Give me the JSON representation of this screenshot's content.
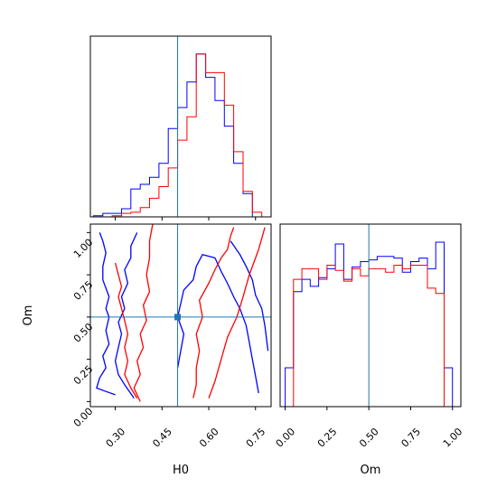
{
  "colors": {
    "blue": "#0000ff",
    "red": "#ff0000",
    "truth": "#1f77b4",
    "frame": "#000000"
  },
  "chart_data": [
    {
      "type": "histogram",
      "panel": "H0 marginal (top-left)",
      "xlim": [
        0.22,
        0.8
      ],
      "bin_edges": [
        0.23,
        0.26,
        0.29,
        0.32,
        0.35,
        0.38,
        0.41,
        0.44,
        0.47,
        0.5,
        0.53,
        0.56,
        0.59,
        0.62,
        0.65,
        0.68,
        0.71,
        0.74,
        0.77
      ],
      "yaxis_visible": false,
      "series": [
        {
          "color": "blue",
          "counts": [
            0.5,
            1.5,
            1.5,
            3.5,
            12,
            14,
            17,
            23,
            38,
            47,
            58,
            70,
            60,
            50,
            39,
            23,
            10,
            0
          ]
        },
        {
          "color": "red",
          "counts": [
            0,
            0,
            0.5,
            1.5,
            2,
            4,
            8,
            13,
            21,
            33,
            43,
            70,
            62,
            62,
            48,
            28,
            11,
            2
          ]
        }
      ],
      "truth_x": 0.5,
      "x_ticks": [
        0.3,
        0.45,
        0.6,
        0.75
      ],
      "x_tick_labels_shown": false
    },
    {
      "type": "contour",
      "panel": "H0 vs Om (bottom-left)",
      "xlabel": "H0",
      "ylabel": "Om",
      "xlim": [
        0.22,
        0.8
      ],
      "ylim": [
        -0.03,
        1.05
      ],
      "x_ticks": [
        0.3,
        0.45,
        0.6,
        0.75
      ],
      "x_tick_labels": [
        "0.30",
        "0.45",
        "0.60",
        "0.75"
      ],
      "y_ticks": [
        0,
        0.25,
        0.5,
        0.75,
        1.0
      ],
      "y_tick_labels": [
        "0.00",
        "0.25",
        "0.50",
        "0.75",
        "1.00"
      ],
      "truth": {
        "x": 0.5,
        "y": 0.5
      },
      "contours": [
        {
          "color": "blue",
          "points": [
            [
              0.25,
              1.0
            ],
            [
              0.26,
              0.95
            ],
            [
              0.27,
              0.88
            ],
            [
              0.26,
              0.8
            ],
            [
              0.26,
              0.72
            ],
            [
              0.28,
              0.62
            ],
            [
              0.27,
              0.55
            ],
            [
              0.28,
              0.5
            ],
            [
              0.27,
              0.42
            ],
            [
              0.28,
              0.34
            ],
            [
              0.26,
              0.27
            ],
            [
              0.27,
              0.2
            ],
            [
              0.25,
              0.14
            ],
            [
              0.24,
              0.08
            ],
            [
              0.27,
              0.06
            ],
            [
              0.3,
              0.04
            ]
          ]
        },
        {
          "color": "blue",
          "points": [
            [
              0.37,
              1.0
            ],
            [
              0.35,
              0.92
            ],
            [
              0.35,
              0.85
            ],
            [
              0.33,
              0.78
            ],
            [
              0.34,
              0.7
            ],
            [
              0.32,
              0.62
            ],
            [
              0.33,
              0.55
            ],
            [
              0.31,
              0.47
            ],
            [
              0.32,
              0.4
            ],
            [
              0.31,
              0.32
            ],
            [
              0.3,
              0.24
            ],
            [
              0.31,
              0.16
            ],
            [
              0.33,
              0.1
            ],
            [
              0.36,
              0.02
            ]
          ]
        },
        {
          "color": "blue",
          "points": [
            [
              0.5,
              0.2
            ],
            [
              0.51,
              0.3
            ],
            [
              0.52,
              0.4
            ],
            [
              0.5,
              0.5
            ],
            [
              0.51,
              0.58
            ],
            [
              0.52,
              0.66
            ],
            [
              0.55,
              0.72
            ],
            [
              0.56,
              0.8
            ],
            [
              0.58,
              0.87
            ],
            [
              0.62,
              0.85
            ],
            [
              0.64,
              0.77
            ],
            [
              0.66,
              0.7
            ],
            [
              0.68,
              0.62
            ],
            [
              0.7,
              0.55
            ],
            [
              0.72,
              0.45
            ],
            [
              0.73,
              0.35
            ],
            [
              0.74,
              0.25
            ],
            [
              0.75,
              0.15
            ],
            [
              0.76,
              0.05
            ]
          ]
        },
        {
          "color": "blue",
          "points": [
            [
              0.67,
              0.95
            ],
            [
              0.7,
              0.87
            ],
            [
              0.72,
              0.8
            ],
            [
              0.74,
              0.72
            ],
            [
              0.75,
              0.63
            ],
            [
              0.77,
              0.55
            ],
            [
              0.78,
              0.45
            ],
            [
              0.79,
              0.3
            ]
          ]
        },
        {
          "color": "red",
          "points": [
            [
              0.3,
              0.82
            ],
            [
              0.31,
              0.75
            ],
            [
              0.32,
              0.68
            ],
            [
              0.31,
              0.62
            ],
            [
              0.32,
              0.55
            ],
            [
              0.33,
              0.48
            ],
            [
              0.34,
              0.4
            ],
            [
              0.33,
              0.32
            ],
            [
              0.34,
              0.24
            ],
            [
              0.33,
              0.16
            ],
            [
              0.35,
              0.08
            ],
            [
              0.37,
              0.02
            ]
          ]
        },
        {
          "color": "red",
          "points": [
            [
              0.42,
              1.05
            ],
            [
              0.41,
              0.95
            ],
            [
              0.41,
              0.85
            ],
            [
              0.4,
              0.75
            ],
            [
              0.41,
              0.65
            ],
            [
              0.39,
              0.57
            ],
            [
              0.4,
              0.48
            ],
            [
              0.38,
              0.4
            ],
            [
              0.39,
              0.32
            ],
            [
              0.37,
              0.24
            ],
            [
              0.38,
              0.16
            ],
            [
              0.36,
              0.08
            ],
            [
              0.38,
              0.0
            ]
          ]
        },
        {
          "color": "red",
          "points": [
            [
              0.55,
              0.02
            ],
            [
              0.56,
              0.1
            ],
            [
              0.56,
              0.2
            ],
            [
              0.57,
              0.3
            ],
            [
              0.56,
              0.4
            ],
            [
              0.58,
              0.5
            ],
            [
              0.57,
              0.6
            ],
            [
              0.6,
              0.7
            ],
            [
              0.62,
              0.78
            ],
            [
              0.64,
              0.85
            ],
            [
              0.66,
              0.9
            ],
            [
              0.67,
              0.98
            ],
            [
              0.68,
              1.03
            ]
          ]
        },
        {
          "color": "red",
          "points": [
            [
              0.6,
              0.02
            ],
            [
              0.62,
              0.12
            ],
            [
              0.64,
              0.25
            ],
            [
              0.66,
              0.38
            ],
            [
              0.69,
              0.5
            ],
            [
              0.71,
              0.62
            ],
            [
              0.73,
              0.75
            ],
            [
              0.76,
              0.9
            ],
            [
              0.78,
              1.03
            ]
          ]
        }
      ]
    },
    {
      "type": "histogram",
      "panel": "Om marginal (bottom-right)",
      "xlabel": "Om",
      "xlim": [
        -0.03,
        1.05
      ],
      "x_ticks": [
        0,
        0.25,
        0.5,
        0.75,
        1.0
      ],
      "x_tick_labels": [
        "0.00",
        "0.25",
        "0.50",
        "0.75",
        "1.00"
      ],
      "bin_edges": [
        0.0,
        0.05,
        0.1,
        0.15,
        0.2,
        0.25,
        0.3,
        0.35,
        0.4,
        0.45,
        0.5,
        0.55,
        0.6,
        0.65,
        0.7,
        0.75,
        0.8,
        0.85,
        0.9,
        0.95,
        1.0
      ],
      "yaxis_visible": false,
      "series": [
        {
          "color": "blue",
          "counts": [
            0.22,
            0.65,
            0.72,
            0.68,
            0.73,
            0.78,
            0.92,
            0.72,
            0.79,
            0.82,
            0.83,
            0.85,
            0.85,
            0.84,
            0.76,
            0.82,
            0.84,
            0.78,
            0.93,
            0.22
          ]
        },
        {
          "color": "red",
          "counts": [
            0,
            0.72,
            0.78,
            0.78,
            0.72,
            0.8,
            0.77,
            0.71,
            0.78,
            0.74,
            0.78,
            0.78,
            0.76,
            0.8,
            0.78,
            0.8,
            0.8,
            0.67,
            0.64,
            0.0
          ]
        }
      ],
      "truth_x": 0.5
    }
  ]
}
